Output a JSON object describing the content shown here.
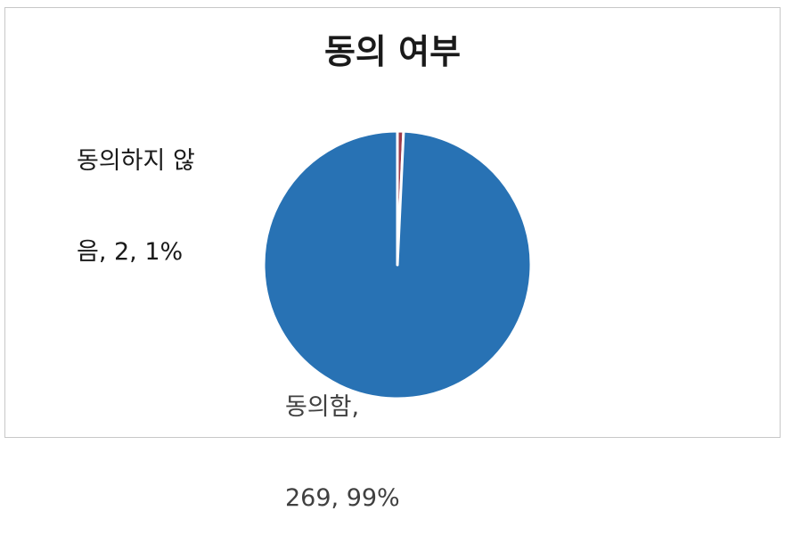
{
  "chart_data": {
    "type": "pie",
    "title": "동의 여부",
    "slices": [
      {
        "name": "동의하지 않음",
        "value": 2,
        "percent": "1%",
        "color": "#9e3a4a"
      },
      {
        "name": "동의함",
        "value": 269,
        "percent": "99%",
        "color": "#2872b4"
      }
    ],
    "data_labels": {
      "disagree": {
        "line1": "동의하지 않",
        "line2": "음, 2, 1%"
      },
      "agree": {
        "line1": "동의함,",
        "line2": "269, 99%"
      }
    },
    "legend": "none",
    "slice_border_color": "#ffffff"
  }
}
